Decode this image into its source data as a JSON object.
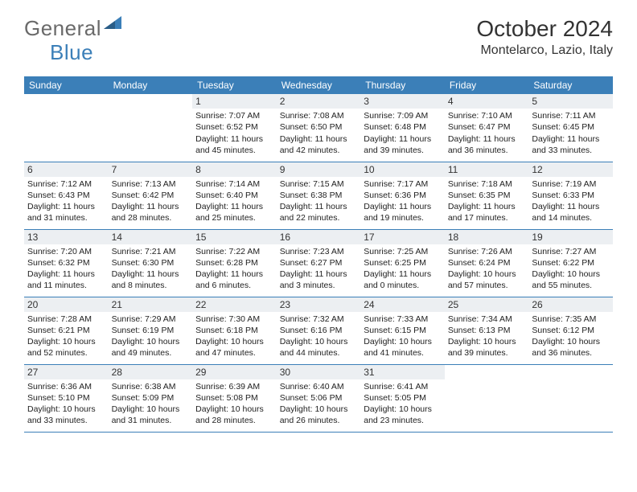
{
  "logo": {
    "part1": "General",
    "part2": "Blue"
  },
  "title": "October 2024",
  "location": "Montelarco, Lazio, Italy",
  "colors": {
    "header_bg": "#3b7fb8",
    "header_text": "#ffffff",
    "daynum_bg": "#eceff2",
    "row_border": "#3b7fb8",
    "logo_gray": "#6a6a6a",
    "logo_blue": "#3b7fb8"
  },
  "weekdays": [
    "Sunday",
    "Monday",
    "Tuesday",
    "Wednesday",
    "Thursday",
    "Friday",
    "Saturday"
  ],
  "weeks": [
    [
      null,
      null,
      {
        "n": "1",
        "sr": "Sunrise: 7:07 AM",
        "ss": "Sunset: 6:52 PM",
        "d1": "Daylight: 11 hours",
        "d2": "and 45 minutes."
      },
      {
        "n": "2",
        "sr": "Sunrise: 7:08 AM",
        "ss": "Sunset: 6:50 PM",
        "d1": "Daylight: 11 hours",
        "d2": "and 42 minutes."
      },
      {
        "n": "3",
        "sr": "Sunrise: 7:09 AM",
        "ss": "Sunset: 6:48 PM",
        "d1": "Daylight: 11 hours",
        "d2": "and 39 minutes."
      },
      {
        "n": "4",
        "sr": "Sunrise: 7:10 AM",
        "ss": "Sunset: 6:47 PM",
        "d1": "Daylight: 11 hours",
        "d2": "and 36 minutes."
      },
      {
        "n": "5",
        "sr": "Sunrise: 7:11 AM",
        "ss": "Sunset: 6:45 PM",
        "d1": "Daylight: 11 hours",
        "d2": "and 33 minutes."
      }
    ],
    [
      {
        "n": "6",
        "sr": "Sunrise: 7:12 AM",
        "ss": "Sunset: 6:43 PM",
        "d1": "Daylight: 11 hours",
        "d2": "and 31 minutes."
      },
      {
        "n": "7",
        "sr": "Sunrise: 7:13 AM",
        "ss": "Sunset: 6:42 PM",
        "d1": "Daylight: 11 hours",
        "d2": "and 28 minutes."
      },
      {
        "n": "8",
        "sr": "Sunrise: 7:14 AM",
        "ss": "Sunset: 6:40 PM",
        "d1": "Daylight: 11 hours",
        "d2": "and 25 minutes."
      },
      {
        "n": "9",
        "sr": "Sunrise: 7:15 AM",
        "ss": "Sunset: 6:38 PM",
        "d1": "Daylight: 11 hours",
        "d2": "and 22 minutes."
      },
      {
        "n": "10",
        "sr": "Sunrise: 7:17 AM",
        "ss": "Sunset: 6:36 PM",
        "d1": "Daylight: 11 hours",
        "d2": "and 19 minutes."
      },
      {
        "n": "11",
        "sr": "Sunrise: 7:18 AM",
        "ss": "Sunset: 6:35 PM",
        "d1": "Daylight: 11 hours",
        "d2": "and 17 minutes."
      },
      {
        "n": "12",
        "sr": "Sunrise: 7:19 AM",
        "ss": "Sunset: 6:33 PM",
        "d1": "Daylight: 11 hours",
        "d2": "and 14 minutes."
      }
    ],
    [
      {
        "n": "13",
        "sr": "Sunrise: 7:20 AM",
        "ss": "Sunset: 6:32 PM",
        "d1": "Daylight: 11 hours",
        "d2": "and 11 minutes."
      },
      {
        "n": "14",
        "sr": "Sunrise: 7:21 AM",
        "ss": "Sunset: 6:30 PM",
        "d1": "Daylight: 11 hours",
        "d2": "and 8 minutes."
      },
      {
        "n": "15",
        "sr": "Sunrise: 7:22 AM",
        "ss": "Sunset: 6:28 PM",
        "d1": "Daylight: 11 hours",
        "d2": "and 6 minutes."
      },
      {
        "n": "16",
        "sr": "Sunrise: 7:23 AM",
        "ss": "Sunset: 6:27 PM",
        "d1": "Daylight: 11 hours",
        "d2": "and 3 minutes."
      },
      {
        "n": "17",
        "sr": "Sunrise: 7:25 AM",
        "ss": "Sunset: 6:25 PM",
        "d1": "Daylight: 11 hours",
        "d2": "and 0 minutes."
      },
      {
        "n": "18",
        "sr": "Sunrise: 7:26 AM",
        "ss": "Sunset: 6:24 PM",
        "d1": "Daylight: 10 hours",
        "d2": "and 57 minutes."
      },
      {
        "n": "19",
        "sr": "Sunrise: 7:27 AM",
        "ss": "Sunset: 6:22 PM",
        "d1": "Daylight: 10 hours",
        "d2": "and 55 minutes."
      }
    ],
    [
      {
        "n": "20",
        "sr": "Sunrise: 7:28 AM",
        "ss": "Sunset: 6:21 PM",
        "d1": "Daylight: 10 hours",
        "d2": "and 52 minutes."
      },
      {
        "n": "21",
        "sr": "Sunrise: 7:29 AM",
        "ss": "Sunset: 6:19 PM",
        "d1": "Daylight: 10 hours",
        "d2": "and 49 minutes."
      },
      {
        "n": "22",
        "sr": "Sunrise: 7:30 AM",
        "ss": "Sunset: 6:18 PM",
        "d1": "Daylight: 10 hours",
        "d2": "and 47 minutes."
      },
      {
        "n": "23",
        "sr": "Sunrise: 7:32 AM",
        "ss": "Sunset: 6:16 PM",
        "d1": "Daylight: 10 hours",
        "d2": "and 44 minutes."
      },
      {
        "n": "24",
        "sr": "Sunrise: 7:33 AM",
        "ss": "Sunset: 6:15 PM",
        "d1": "Daylight: 10 hours",
        "d2": "and 41 minutes."
      },
      {
        "n": "25",
        "sr": "Sunrise: 7:34 AM",
        "ss": "Sunset: 6:13 PM",
        "d1": "Daylight: 10 hours",
        "d2": "and 39 minutes."
      },
      {
        "n": "26",
        "sr": "Sunrise: 7:35 AM",
        "ss": "Sunset: 6:12 PM",
        "d1": "Daylight: 10 hours",
        "d2": "and 36 minutes."
      }
    ],
    [
      {
        "n": "27",
        "sr": "Sunrise: 6:36 AM",
        "ss": "Sunset: 5:10 PM",
        "d1": "Daylight: 10 hours",
        "d2": "and 33 minutes."
      },
      {
        "n": "28",
        "sr": "Sunrise: 6:38 AM",
        "ss": "Sunset: 5:09 PM",
        "d1": "Daylight: 10 hours",
        "d2": "and 31 minutes."
      },
      {
        "n": "29",
        "sr": "Sunrise: 6:39 AM",
        "ss": "Sunset: 5:08 PM",
        "d1": "Daylight: 10 hours",
        "d2": "and 28 minutes."
      },
      {
        "n": "30",
        "sr": "Sunrise: 6:40 AM",
        "ss": "Sunset: 5:06 PM",
        "d1": "Daylight: 10 hours",
        "d2": "and 26 minutes."
      },
      {
        "n": "31",
        "sr": "Sunrise: 6:41 AM",
        "ss": "Sunset: 5:05 PM",
        "d1": "Daylight: 10 hours",
        "d2": "and 23 minutes."
      },
      null,
      null
    ]
  ]
}
